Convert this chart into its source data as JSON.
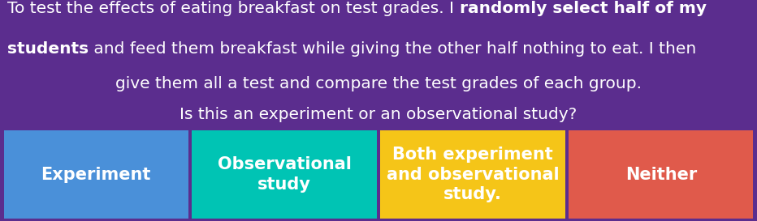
{
  "background_color": "#5b2d8e",
  "buttons": [
    {
      "label": "Experiment",
      "color": "#4a90d9",
      "text_color": "#ffffff"
    },
    {
      "label": "Observational\nstudy",
      "color": "#00c4b4",
      "text_color": "#ffffff"
    },
    {
      "label": "Both experiment\nand observational\nstudy.",
      "color": "#f5c518",
      "text_color": "#ffffff"
    },
    {
      "label": "Neither",
      "color": "#e05a4b",
      "text_color": "#ffffff"
    }
  ],
  "title_text_color": "#ffffff",
  "title_fontsize": 14.5,
  "button_fontsize": 15,
  "fig_width": 9.32,
  "fig_height": 2.73,
  "lines": [
    [
      [
        "To test the effects of eating breakfast on test grades. I ",
        false
      ],
      [
        "randomly select half of my",
        true
      ]
    ],
    [
      [
        "students",
        true
      ],
      [
        " and feed them breakfast while giving the other half nothing to eat. I then",
        false
      ]
    ],
    [
      [
        "give them all a test and compare the test grades of each group.",
        false
      ]
    ],
    [
      [
        "Is this an experiment or an observational study?",
        false
      ]
    ]
  ],
  "line_alignments": [
    "left",
    "left",
    "center",
    "center"
  ]
}
